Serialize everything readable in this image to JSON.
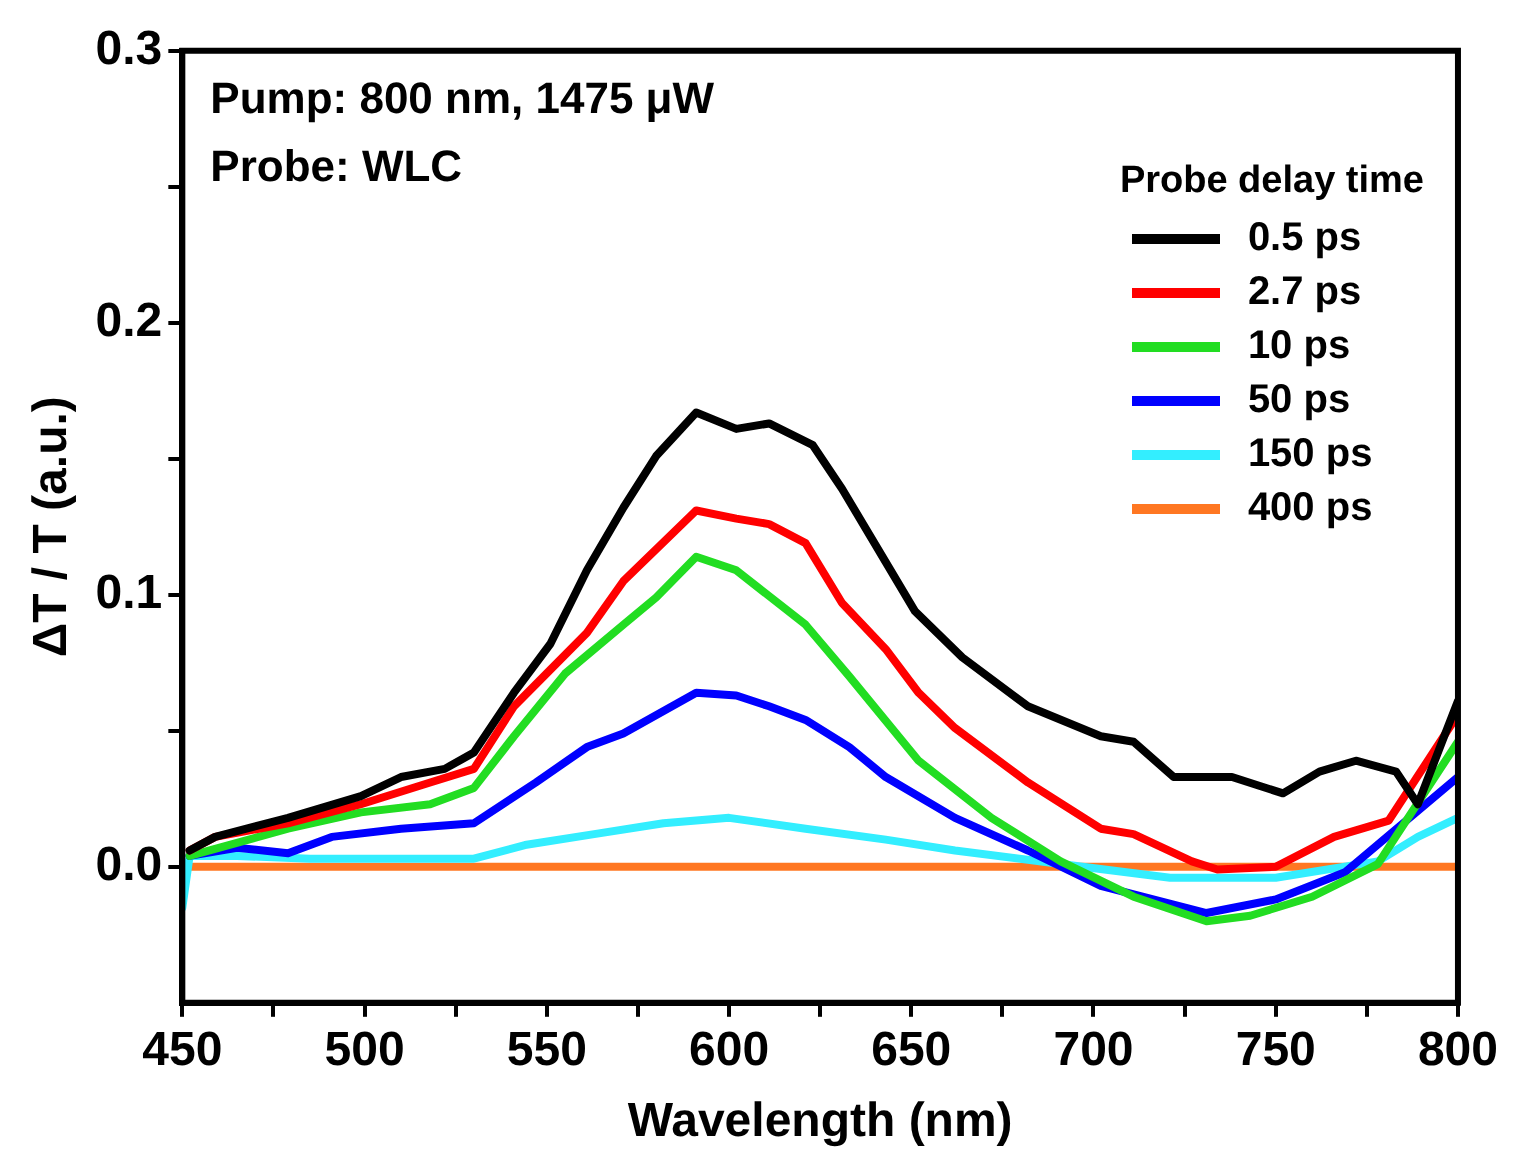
{
  "chart_data": {
    "type": "line",
    "xlabel": "Wavelength (nm)",
    "ylabel": "ΔT / T (a.u.)",
    "legend_title": "Probe delay time",
    "legend": "top right",
    "grid": false,
    "marker": "none",
    "line_style": "solid",
    "annotations": [
      "Pump: 800 nm, 1475 μW",
      "Probe: WLC"
    ],
    "xlim": [
      450,
      800
    ],
    "xticks": [
      450,
      {
        "value": 475,
        "label": null
      },
      500,
      {
        "value": 525,
        "label": null
      },
      550,
      {
        "value": 575,
        "label": null
      },
      600,
      {
        "value": 625,
        "label": null
      },
      650,
      {
        "value": 675,
        "label": null
      },
      700,
      {
        "value": 725,
        "label": null
      },
      750,
      {
        "value": 775,
        "label": null
      },
      800
    ],
    "ylim": [
      -0.05,
      0.3
    ],
    "yticks": [
      {
        "value": 0,
        "label": "0.0"
      },
      {
        "value": 0.05,
        "label": null
      },
      0.1,
      {
        "value": 0.15,
        "label": null
      },
      0.2,
      {
        "value": 0.25,
        "label": null
      },
      0.3
    ],
    "series": [
      {
        "name": "0.5 ps",
        "color": "#000000",
        "x": [
          452,
          459,
          479,
          499,
          510,
          522,
          530,
          541,
          551,
          561,
          571,
          580,
          591,
          602,
          611,
          623,
          631,
          643,
          651,
          664,
          682,
          702,
          711,
          722,
          738,
          752,
          762,
          772,
          783,
          789,
          800
        ],
        "values": [
          0.006,
          0.011,
          0.018,
          0.026,
          0.033,
          0.036,
          0.042,
          0.064,
          0.082,
          0.109,
          0.132,
          0.151,
          0.167,
          0.161,
          0.163,
          0.155,
          0.139,
          0.112,
          0.094,
          0.077,
          0.059,
          0.048,
          0.046,
          0.033,
          0.033,
          0.027,
          0.035,
          0.039,
          0.035,
          0.023,
          0.061
        ]
      },
      {
        "name": "2.7 ps",
        "color": "#ff0000",
        "x": [
          452,
          459,
          479,
          499,
          518,
          530,
          541,
          561,
          571,
          591,
          602,
          611,
          621,
          631,
          643,
          652,
          662,
          682,
          702,
          711,
          727,
          734,
          750,
          766,
          781,
          800
        ],
        "values": [
          0.006,
          0.011,
          0.016,
          0.023,
          0.031,
          0.036,
          0.059,
          0.086,
          0.105,
          0.131,
          0.128,
          0.126,
          0.119,
          0.097,
          0.08,
          0.064,
          0.051,
          0.031,
          0.014,
          0.012,
          0.002,
          -0.001,
          0,
          0.011,
          0.017,
          0.056
        ]
      },
      {
        "name": "10 ps",
        "color": "#22dd22",
        "x": [
          452,
          479,
          499,
          518,
          530,
          541,
          555,
          571,
          580,
          591,
          602,
          621,
          633,
          652,
          672,
          691,
          711,
          731,
          743,
          760,
          778,
          800
        ],
        "values": [
          0.004,
          0.014,
          0.02,
          0.023,
          0.029,
          0.048,
          0.071,
          0.089,
          0.099,
          0.114,
          0.109,
          0.089,
          0.07,
          0.039,
          0.018,
          0.002,
          -0.011,
          -0.02,
          -0.018,
          -0.011,
          0.001,
          0.046
        ]
      },
      {
        "name": "50 ps",
        "color": "#0000ff",
        "x": [
          452,
          465,
          479,
          491,
          510,
          530,
          547,
          561,
          571,
          591,
          602,
          611,
          621,
          633,
          643,
          662,
          682,
          702,
          731,
          750,
          769,
          800
        ],
        "values": [
          0.004,
          0.007,
          0.005,
          0.011,
          0.014,
          0.016,
          0.031,
          0.044,
          0.049,
          0.064,
          0.063,
          0.059,
          0.054,
          0.044,
          0.033,
          0.018,
          0.006,
          -0.007,
          -0.017,
          -0.012,
          -0.002,
          0.033
        ]
      },
      {
        "name": "150 ps",
        "color": "#33eeff",
        "x": [
          450,
          452,
          465,
          485,
          530,
          544,
          563,
          582,
          600,
          621,
          643,
          662,
          691,
          721,
          750,
          778,
          789,
          800
        ],
        "values": [
          -0.015,
          0.004,
          0.004,
          0.003,
          0.003,
          0.008,
          0.012,
          0.016,
          0.018,
          0.014,
          0.01,
          0.006,
          0.001,
          -0.004,
          -0.004,
          0.002,
          0.011,
          0.018
        ]
      },
      {
        "name": "400 ps",
        "color": "#ff7722",
        "x": [
          450,
          800
        ],
        "values": [
          0,
          0
        ]
      }
    ]
  }
}
